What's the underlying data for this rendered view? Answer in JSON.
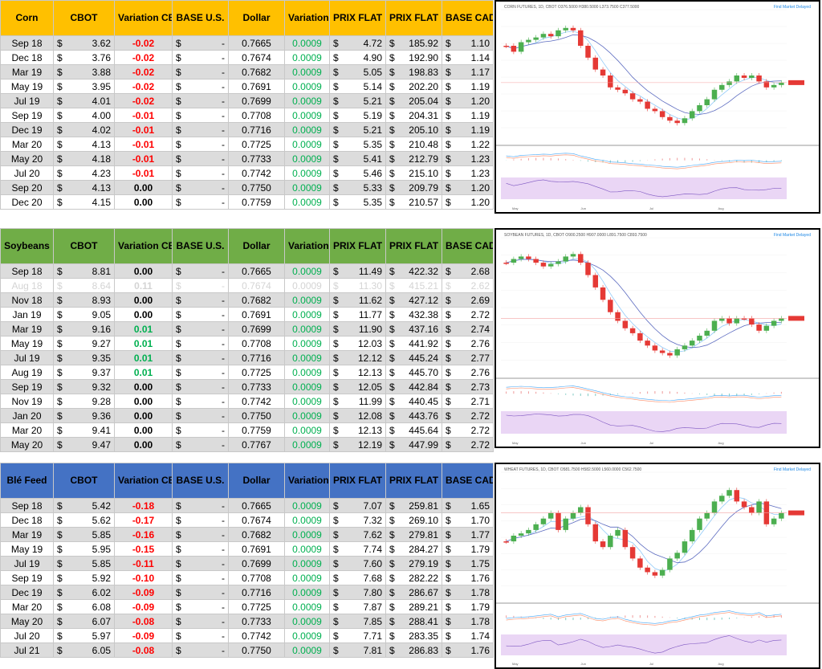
{
  "headers": [
    "CBOT",
    "Variation CBOT",
    "BASE U.S.",
    "Dollar",
    "Variation Dollar",
    "PRIX FLAT CDN$ / BU.",
    "PRIX FLAT CDN$ / MT",
    "BASE CAD"
  ],
  "sections": [
    {
      "name": "Corn",
      "rows": [
        {
          "m": "Sep 18",
          "cbot": "3.62",
          "var": "-0.02",
          "base": "-",
          "dollar": "0.7665",
          "vd": "0.0009",
          "pbu": "4.72",
          "pmt": "185.92",
          "cad": "1.10"
        },
        {
          "m": "Dec 18",
          "cbot": "3.76",
          "var": "-0.02",
          "base": "-",
          "dollar": "0.7674",
          "vd": "0.0009",
          "pbu": "4.90",
          "pmt": "192.90",
          "cad": "1.14"
        },
        {
          "m": "Mar 19",
          "cbot": "3.88",
          "var": "-0.02",
          "base": "-",
          "dollar": "0.7682",
          "vd": "0.0009",
          "pbu": "5.05",
          "pmt": "198.83",
          "cad": "1.17"
        },
        {
          "m": "May 19",
          "cbot": "3.95",
          "var": "-0.02",
          "base": "-",
          "dollar": "0.7691",
          "vd": "0.0009",
          "pbu": "5.14",
          "pmt": "202.20",
          "cad": "1.19"
        },
        {
          "m": "Jul 19",
          "cbot": "4.01",
          "var": "-0.02",
          "base": "-",
          "dollar": "0.7699",
          "vd": "0.0009",
          "pbu": "5.21",
          "pmt": "205.04",
          "cad": "1.20"
        },
        {
          "m": "Sep 19",
          "cbot": "4.00",
          "var": "-0.01",
          "base": "-",
          "dollar": "0.7708",
          "vd": "0.0009",
          "pbu": "5.19",
          "pmt": "204.31",
          "cad": "1.19"
        },
        {
          "m": "Dec 19",
          "cbot": "4.02",
          "var": "-0.01",
          "base": "-",
          "dollar": "0.7716",
          "vd": "0.0009",
          "pbu": "5.21",
          "pmt": "205.10",
          "cad": "1.19"
        },
        {
          "m": "Mar 20",
          "cbot": "4.13",
          "var": "-0.01",
          "base": "-",
          "dollar": "0.7725",
          "vd": "0.0009",
          "pbu": "5.35",
          "pmt": "210.48",
          "cad": "1.22"
        },
        {
          "m": "May 20",
          "cbot": "4.18",
          "var": "-0.01",
          "base": "-",
          "dollar": "0.7733",
          "vd": "0.0009",
          "pbu": "5.41",
          "pmt": "212.79",
          "cad": "1.23"
        },
        {
          "m": "Jul 20",
          "cbot": "4.23",
          "var": "-0.01",
          "base": "-",
          "dollar": "0.7742",
          "vd": "0.0009",
          "pbu": "5.46",
          "pmt": "215.10",
          "cad": "1.23"
        },
        {
          "m": "Sep 20",
          "cbot": "4.13",
          "var": "0.00",
          "base": "-",
          "dollar": "0.7750",
          "vd": "0.0009",
          "pbu": "5.33",
          "pmt": "209.79",
          "cad": "1.20"
        },
        {
          "m": "Dec 20",
          "cbot": "4.15",
          "var": "0.00",
          "base": "-",
          "dollar": "0.7759",
          "vd": "0.0009",
          "pbu": "5.35",
          "pmt": "210.57",
          "cad": "1.20"
        }
      ],
      "chart": {
        "title": "CORN FUTURES, 1D, CBOT  O376.5000  H380.5000  L373.7500  C377.5000",
        "market": "Find Market  Delayed"
      }
    },
    {
      "name": "Soybeans",
      "rows": [
        {
          "m": "Sep 18",
          "cbot": "8.81",
          "var": "0.00",
          "base": "-",
          "dollar": "0.7665",
          "vd": "0.0009",
          "pbu": "11.49",
          "pmt": "422.32",
          "cad": "2.68"
        },
        {
          "m": "Aug 18",
          "cbot": "8.64",
          "var": "0.11",
          "base": "-",
          "dollar": "0.7674",
          "vd": "0.0009",
          "pbu": "11.30",
          "pmt": "415.21",
          "cad": "2.62",
          "faded": true
        },
        {
          "m": "Nov 18",
          "cbot": "8.93",
          "var": "0.00",
          "base": "-",
          "dollar": "0.7682",
          "vd": "0.0009",
          "pbu": "11.62",
          "pmt": "427.12",
          "cad": "2.69"
        },
        {
          "m": "Jan 19",
          "cbot": "9.05",
          "var": "0.00",
          "base": "-",
          "dollar": "0.7691",
          "vd": "0.0009",
          "pbu": "11.77",
          "pmt": "432.38",
          "cad": "2.72"
        },
        {
          "m": "Mar 19",
          "cbot": "9.16",
          "var": "0.01",
          "base": "-",
          "dollar": "0.7699",
          "vd": "0.0009",
          "pbu": "11.90",
          "pmt": "437.16",
          "cad": "2.74"
        },
        {
          "m": "May 19",
          "cbot": "9.27",
          "var": "0.01",
          "base": "-",
          "dollar": "0.7708",
          "vd": "0.0009",
          "pbu": "12.03",
          "pmt": "441.92",
          "cad": "2.76"
        },
        {
          "m": "Jul 19",
          "cbot": "9.35",
          "var": "0.01",
          "base": "-",
          "dollar": "0.7716",
          "vd": "0.0009",
          "pbu": "12.12",
          "pmt": "445.24",
          "cad": "2.77"
        },
        {
          "m": "Aug 19",
          "cbot": "9.37",
          "var": "0.01",
          "base": "-",
          "dollar": "0.7725",
          "vd": "0.0009",
          "pbu": "12.13",
          "pmt": "445.70",
          "cad": "2.76"
        },
        {
          "m": "Sep 19",
          "cbot": "9.32",
          "var": "0.00",
          "base": "-",
          "dollar": "0.7733",
          "vd": "0.0009",
          "pbu": "12.05",
          "pmt": "442.84",
          "cad": "2.73"
        },
        {
          "m": "Nov 19",
          "cbot": "9.28",
          "var": "0.00",
          "base": "-",
          "dollar": "0.7742",
          "vd": "0.0009",
          "pbu": "11.99",
          "pmt": "440.45",
          "cad": "2.71"
        },
        {
          "m": "Jan 20",
          "cbot": "9.36",
          "var": "0.00",
          "base": "-",
          "dollar": "0.7750",
          "vd": "0.0009",
          "pbu": "12.08",
          "pmt": "443.76",
          "cad": "2.72"
        },
        {
          "m": "Mar 20",
          "cbot": "9.41",
          "var": "0.00",
          "base": "-",
          "dollar": "0.7759",
          "vd": "0.0009",
          "pbu": "12.13",
          "pmt": "445.64",
          "cad": "2.72"
        },
        {
          "m": "May 20",
          "cbot": "9.47",
          "var": "0.00",
          "base": "-",
          "dollar": "0.7767",
          "vd": "0.0009",
          "pbu": "12.19",
          "pmt": "447.99",
          "cad": "2.72"
        }
      ],
      "chart": {
        "title": "SOYBEAN FUTURES, 1D, CBOT  O900.2500  H907.0000  L891.7500  C893.7500",
        "market": "Find Market  Delayed"
      }
    },
    {
      "name": "Blé Feed",
      "rows": [
        {
          "m": "Sep 18",
          "cbot": "5.42",
          "var": "-0.18",
          "base": "-",
          "dollar": "0.7665",
          "vd": "0.0009",
          "pbu": "7.07",
          "pmt": "259.81",
          "cad": "1.65"
        },
        {
          "m": "Dec 18",
          "cbot": "5.62",
          "var": "-0.17",
          "base": "-",
          "dollar": "0.7674",
          "vd": "0.0009",
          "pbu": "7.32",
          "pmt": "269.10",
          "cad": "1.70"
        },
        {
          "m": "Mar 19",
          "cbot": "5.85",
          "var": "-0.16",
          "base": "-",
          "dollar": "0.7682",
          "vd": "0.0009",
          "pbu": "7.62",
          "pmt": "279.81",
          "cad": "1.77"
        },
        {
          "m": "May 19",
          "cbot": "5.95",
          "var": "-0.15",
          "base": "-",
          "dollar": "0.7691",
          "vd": "0.0009",
          "pbu": "7.74",
          "pmt": "284.27",
          "cad": "1.79"
        },
        {
          "m": "Jul 19",
          "cbot": "5.85",
          "var": "-0.11",
          "base": "-",
          "dollar": "0.7699",
          "vd": "0.0009",
          "pbu": "7.60",
          "pmt": "279.19",
          "cad": "1.75"
        },
        {
          "m": "Sep 19",
          "cbot": "5.92",
          "var": "-0.10",
          "base": "-",
          "dollar": "0.7708",
          "vd": "0.0009",
          "pbu": "7.68",
          "pmt": "282.22",
          "cad": "1.76"
        },
        {
          "m": "Dec 19",
          "cbot": "6.02",
          "var": "-0.09",
          "base": "-",
          "dollar": "0.7716",
          "vd": "0.0009",
          "pbu": "7.80",
          "pmt": "286.67",
          "cad": "1.78"
        },
        {
          "m": "Mar 20",
          "cbot": "6.08",
          "var": "-0.09",
          "base": "-",
          "dollar": "0.7725",
          "vd": "0.0009",
          "pbu": "7.87",
          "pmt": "289.21",
          "cad": "1.79"
        },
        {
          "m": "May 20",
          "cbot": "6.07",
          "var": "-0.08",
          "base": "-",
          "dollar": "0.7733",
          "vd": "0.0009",
          "pbu": "7.85",
          "pmt": "288.41",
          "cad": "1.78"
        },
        {
          "m": "Jul 20",
          "cbot": "5.97",
          "var": "-0.09",
          "base": "-",
          "dollar": "0.7742",
          "vd": "0.0009",
          "pbu": "7.71",
          "pmt": "283.35",
          "cad": "1.74"
        },
        {
          "m": "Jul 21",
          "cbot": "6.05",
          "var": "-0.08",
          "base": "-",
          "dollar": "0.7750",
          "vd": "0.0009",
          "pbu": "7.81",
          "pmt": "286.83",
          "cad": "1.76"
        }
      ],
      "chart": {
        "title": "WHEAT FUTURES, 1D, CBOT  O581.7500  H582.5000  L560.0000  C562.7500",
        "market": "Find Market  Delayed"
      }
    }
  ],
  "chart_axis_months": [
    "May",
    "Jun",
    "Jul",
    "Aug"
  ],
  "colors": {
    "corn": "#ffc000",
    "soy": "#70ad47",
    "ble": "#4472c4",
    "negative": "#ff0000",
    "positive": "#00b050",
    "candle_up": "#4caf50",
    "candle_down": "#e53935",
    "ma1": "#90caf9",
    "ma2": "#5c6bc0",
    "rsi_bg": "#ead6f5"
  }
}
